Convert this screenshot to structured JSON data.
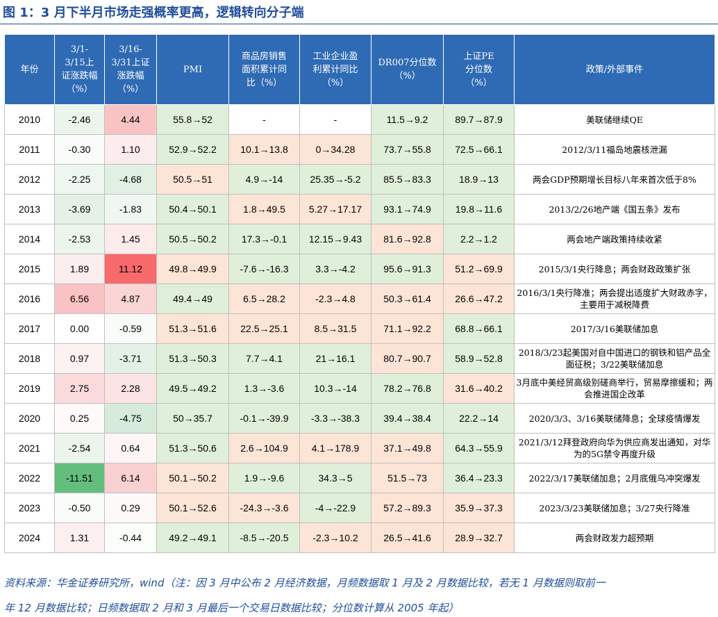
{
  "title": "图 1：3 月下半月市场走强概率更高，逻辑转向分子端",
  "headers": [
    "年份",
    "3/1-\n3/15上\n证涨跌幅\n（%）",
    "3/16-\n3/31上证\n涨跌幅\n（%）",
    "PMI",
    "商品房销售\n面积累计同\n比（%）",
    "工业企业盈\n利累计同比\n（%）",
    "DR007分位数\n（%）",
    "上证PE\n分位数\n（%）",
    "政策/外部事件"
  ],
  "rows": [
    [
      "2010",
      "-2.46",
      "4.44",
      "55.8→52",
      "-",
      "-",
      "11.5→9.2",
      "89.7→87.9",
      "美联储继续QE"
    ],
    [
      "2011",
      "-0.30",
      "1.10",
      "52.9→52.2",
      "10.1→13.8",
      "0→34.28",
      "73.7→55.8",
      "72.5→66.1",
      "2012/3/11福岛地震核泄漏"
    ],
    [
      "2012",
      "-2.25",
      "-4.68",
      "50.5→51",
      "4.9→-14",
      "25.35→-5.2",
      "85.5→83.3",
      "18.9→13",
      "两会GDP预期增长目标八年来首次低于8%"
    ],
    [
      "2013",
      "-3.69",
      "-1.83",
      "50.4→50.1",
      "1.8→49.5",
      "5.27→17.17",
      "93.1→74.9",
      "19.8→11.6",
      "2013/2/26地产端《国五条》发布"
    ],
    [
      "2014",
      "-2.53",
      "1.45",
      "50.5→50.2",
      "17.3→-0.1",
      "12.15→9.43",
      "81.6→92.8",
      "2.2→1.2",
      "两会地产端政策持续收紧"
    ],
    [
      "2015",
      "1.89",
      "11.12",
      "49.8→49.9",
      "-7.6→-16.3",
      "3.3→-4.2",
      "95.6→91.3",
      "51.2→69.9",
      "2015/3/1央行降息；两会财政政策扩张"
    ],
    [
      "2016",
      "6.56",
      "4.87",
      "49.4→49",
      "6.5→28.2",
      "-2.3→4.8",
      "50.3→61.4",
      "26.6→47.2",
      "2016/3/1央行降准；两会提出适度扩大财政赤字，主要用于减税降费"
    ],
    [
      "2017",
      "0.00",
      "-0.59",
      "51.3→51.6",
      "22.5→25.1",
      "8.5→31.5",
      "71.1→92.2",
      "68.8→66.1",
      "2017/3/16美联储加息"
    ],
    [
      "2018",
      "0.97",
      "-3.71",
      "51.3→50.3",
      "7.7→4.1",
      "21→16.1",
      "80.7→90.7",
      "58.9→52.8",
      "2018/3/23起美国对自中国进口的钢铁和铝产品全面征税；3/22美联储加息"
    ],
    [
      "2019",
      "2.75",
      "2.28",
      "49.5→49.2",
      "1.3→-3.6",
      "10.3→-14",
      "78.2→76.8",
      "31.6→40.2",
      "3月底中美经贸高级别磋商举行，贸易摩擦缓和；两会推进国企改革"
    ],
    [
      "2020",
      "0.25",
      "-4.75",
      "50→35.7",
      "-0.1→-39.9",
      "-3.3→-38.3",
      "39.4→38.4",
      "22.2→14",
      "2020/3/3、3/16美联储降息；全球疫情爆发"
    ],
    [
      "2021",
      "-2.54",
      "0.64",
      "51.3→50.6",
      "2.6→104.9",
      "4.1→178.9",
      "37.1→49.8",
      "64.3→55.9",
      "2021/3/12拜登政府向华为供应商发出通知，对华为的5G禁令再度升级"
    ],
    [
      "2022",
      "-11.51",
      "6.14",
      "50.1→50.2",
      "1.9→-9.6",
      "34.3→5",
      "51.5→73",
      "36.4→23.3",
      "2022/3/17美联储加息；2月底俄乌冲突爆发"
    ],
    [
      "2023",
      "-0.50",
      "0.29",
      "50.1→52.6",
      "-24.3→-3.6",
      "-4→-22.9",
      "57.2→89.3",
      "35.9→37.3",
      "2023/3/23美联储加息；3/27央行降准"
    ],
    [
      "2024",
      "1.31",
      "-0.44",
      "49.2→49.1",
      "-8.5→-20.5",
      "-2.3→10.2",
      "26.5→41.6",
      "28.9→32.7",
      "两会财政发力超预期"
    ]
  ],
  "cell_colors": [
    [
      "#ffffff",
      "#ebf5ec",
      "#f9c3c4",
      "#e0efd9",
      "#ffffff",
      "#ffffff",
      "#e0efd9",
      "#e0efd9",
      "#ffffff"
    ],
    [
      "#ffffff",
      "#fafcfa",
      "#fdeced",
      "#e0efd9",
      "#fce4d6",
      "#fce4d6",
      "#e0efd9",
      "#e0efd9",
      "#ffffff"
    ],
    [
      "#ffffff",
      "#eef7ef",
      "#e1f0e3",
      "#fce4d6",
      "#e0efd9",
      "#e0efd9",
      "#e0efd9",
      "#e0efd9",
      "#ffffff"
    ],
    [
      "#ffffff",
      "#e5f1e6",
      "#f0f7f1",
      "#e0efd9",
      "#fce4d6",
      "#fce4d6",
      "#e0efd9",
      "#e0efd9",
      "#ffffff"
    ],
    [
      "#ffffff",
      "#ebf5ec",
      "#fdebec",
      "#e0efd9",
      "#e0efd9",
      "#e0efd9",
      "#fce4d6",
      "#e0efd9",
      "#ffffff"
    ],
    [
      "#ffffff",
      "#fcedee",
      "#f8696b",
      "#fce4d6",
      "#e0efd9",
      "#e0efd9",
      "#e0efd9",
      "#fce4d6",
      "#ffffff"
    ],
    [
      "#ffffff",
      "#f9c2c3",
      "#fbd5d6",
      "#e0efd9",
      "#fce4d6",
      "#fce4d6",
      "#fce4d6",
      "#fce4d6",
      "#ffffff"
    ],
    [
      "#ffffff",
      "#ffffff",
      "#f8fbf8",
      "#fce4d6",
      "#fce4d6",
      "#fce4d6",
      "#fce4d6",
      "#e0efd9",
      "#ffffff"
    ],
    [
      "#ffffff",
      "#fdf2f2",
      "#e4f1e6",
      "#e0efd9",
      "#e0efd9",
      "#e0efd9",
      "#fce4d6",
      "#e0efd9",
      "#ffffff"
    ],
    [
      "#ffffff",
      "#fadadb",
      "#fbe3e4",
      "#e0efd9",
      "#e0efd9",
      "#e0efd9",
      "#e0efd9",
      "#fce4d6",
      "#ffffff"
    ],
    [
      "#ffffff",
      "#fefafa",
      "#d7ebda",
      "#e0efd9",
      "#e0efd9",
      "#e0efd9",
      "#e0efd9",
      "#e0efd9",
      "#ffffff"
    ],
    [
      "#ffffff",
      "#ebf5ec",
      "#fef6f6",
      "#e0efd9",
      "#fce4d6",
      "#fce4d6",
      "#fce4d6",
      "#e0efd9",
      "#ffffff"
    ],
    [
      "#ffffff",
      "#63be7b",
      "#fad1d2",
      "#fce4d6",
      "#e0efd9",
      "#e0efd9",
      "#fce4d6",
      "#e0efd9",
      "#ffffff"
    ],
    [
      "#ffffff",
      "#f9fcf9",
      "#fef9f9",
      "#fce4d6",
      "#fce4d6",
      "#e0efd9",
      "#fce4d6",
      "#fce4d6",
      "#ffffff"
    ],
    [
      "#ffffff",
      "#fdeff0",
      "#fbfdfb",
      "#e0efd9",
      "#e0efd9",
      "#fce4d6",
      "#fce4d6",
      "#fce4d6",
      "#ffffff"
    ]
  ],
  "source_line1": "资料来源：华金证券研究所，wind（注：因 3 月中公布 2 月经济数据，月频数据取 1 月及 2 月数据比较，若无 1 月数据则取前一",
  "source_line2": "年 12 月数据比较；日频数据取 2 月和 3 月最后一个交易日数据比较；分位数计算从 2005 年起）",
  "colors": {
    "header_bg": "#2f6bb5",
    "title": "#1f4e9a",
    "up_red": "#f8696b",
    "down_green": "#63be7b",
    "rise_pink": "#fce4d6",
    "fall_green": "#e0efd9"
  }
}
